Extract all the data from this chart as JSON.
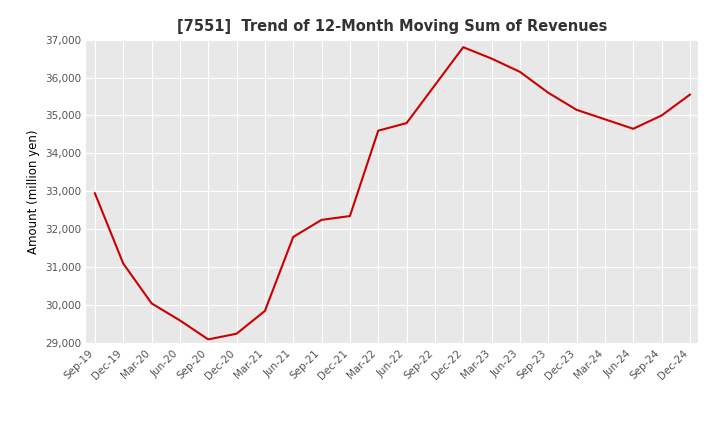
{
  "title": "[7551]  Trend of 12-Month Moving Sum of Revenues",
  "ylabel": "Amount (million yen)",
  "line_color": "#cc0000",
  "background_color": "#ffffff",
  "plot_background_color": "#e8e8e8",
  "grid_color": "#ffffff",
  "ylim": [
    29000,
    37000
  ],
  "yticks": [
    29000,
    30000,
    31000,
    32000,
    33000,
    34000,
    35000,
    36000,
    37000
  ],
  "x_labels": [
    "Sep-19",
    "Dec-19",
    "Mar-20",
    "Jun-20",
    "Sep-20",
    "Dec-20",
    "Mar-21",
    "Jun-21",
    "Sep-21",
    "Dec-21",
    "Mar-22",
    "Jun-22",
    "Sep-22",
    "Dec-22",
    "Mar-23",
    "Jun-23",
    "Sep-23",
    "Dec-23",
    "Mar-24",
    "Jun-24",
    "Sep-24",
    "Dec-24"
  ],
  "values": [
    32950,
    31100,
    30050,
    29600,
    29100,
    29250,
    29850,
    31800,
    32250,
    32350,
    34600,
    34800,
    35800,
    36800,
    36500,
    36150,
    35600,
    35150,
    34900,
    34650,
    35000,
    35550
  ]
}
